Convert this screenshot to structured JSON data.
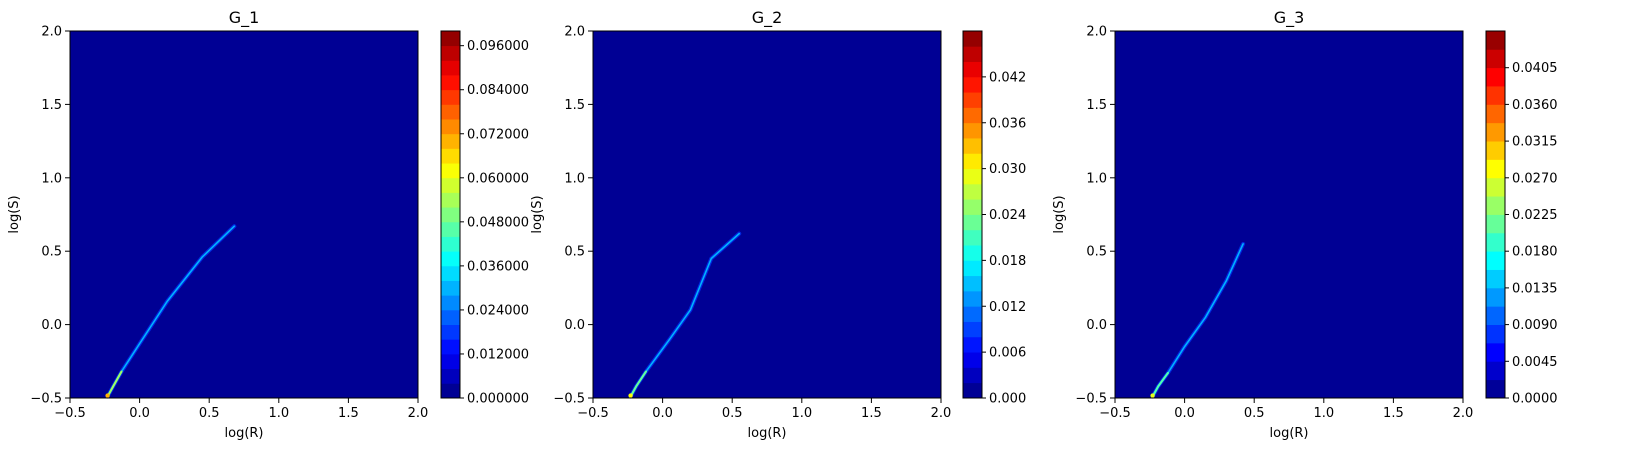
{
  "colors": {
    "background": "#000080",
    "colormap": "jet"
  },
  "chart_data": [
    {
      "type": "heatmap",
      "title": "G_1",
      "xlabel": "log(R)",
      "ylabel": "log(S)",
      "xlim": [
        -0.5,
        2.0
      ],
      "ylim": [
        -0.5,
        2.0
      ],
      "xticks": [
        "−0.5",
        "0.0",
        "0.5",
        "1.0",
        "1.5",
        "2.0"
      ],
      "yticks": [
        "−0.5",
        "0.0",
        "0.5",
        "1.0",
        "1.5",
        "2.0"
      ],
      "colorbar": {
        "min": 0.0,
        "max": 0.1,
        "levels": 25,
        "ticks": [
          "0.000000",
          "0.012000",
          "0.024000",
          "0.036000",
          "0.048000",
          "0.060000",
          "0.072000",
          "0.084000",
          "0.096000"
        ],
        "tick_values": [
          0,
          0.012,
          0.024,
          0.036,
          0.048,
          0.06,
          0.072,
          0.084,
          0.096
        ]
      },
      "ridge": {
        "points": [
          [
            -0.23,
            -0.49
          ],
          [
            -0.19,
            -0.42
          ],
          [
            -0.13,
            -0.32
          ],
          [
            0.0,
            -0.13
          ],
          [
            0.2,
            0.16
          ],
          [
            0.45,
            0.46
          ],
          [
            0.68,
            0.67
          ]
        ],
        "peak_value": 0.07
      },
      "grid": false
    },
    {
      "type": "heatmap",
      "title": "G_2",
      "xlabel": "log(R)",
      "ylabel": "log(S)",
      "xlim": [
        -0.5,
        2.0
      ],
      "ylim": [
        -0.5,
        2.0
      ],
      "xticks": [
        "−0.5",
        "0.0",
        "0.5",
        "1.0",
        "1.5",
        "2.0"
      ],
      "yticks": [
        "−0.5",
        "0.0",
        "0.5",
        "1.0",
        "1.5",
        "2.0"
      ],
      "colorbar": {
        "min": 0.0,
        "max": 0.048,
        "levels": 24,
        "ticks": [
          "0.000",
          "0.006",
          "0.012",
          "0.018",
          "0.024",
          "0.030",
          "0.036",
          "0.042"
        ],
        "tick_values": [
          0,
          0.006,
          0.012,
          0.018,
          0.024,
          0.03,
          0.036,
          0.042
        ]
      },
      "ridge": {
        "points": [
          [
            -0.23,
            -0.49
          ],
          [
            -0.19,
            -0.42
          ],
          [
            -0.12,
            -0.32
          ],
          [
            0.05,
            -0.1
          ],
          [
            0.2,
            0.1
          ],
          [
            0.35,
            0.45
          ],
          [
            0.55,
            0.62
          ]
        ],
        "peak_value": 0.03
      },
      "grid": false
    },
    {
      "type": "heatmap",
      "title": "G_3",
      "xlabel": "log(R)",
      "ylabel": "log(S)",
      "xlim": [
        -0.5,
        2.0
      ],
      "ylim": [
        -0.5,
        2.0
      ],
      "xticks": [
        "−0.5",
        "0.0",
        "0.5",
        "1.0",
        "1.5",
        "2.0"
      ],
      "yticks": [
        "−0.5",
        "0.0",
        "0.5",
        "1.0",
        "1.5",
        "2.0"
      ],
      "colorbar": {
        "min": 0.0,
        "max": 0.045,
        "levels": 20,
        "ticks": [
          "0.0000",
          "0.0045",
          "0.0090",
          "0.0135",
          "0.0180",
          "0.0225",
          "0.0270",
          "0.0315",
          "0.0360",
          "0.0405"
        ],
        "tick_values": [
          0,
          0.0045,
          0.009,
          0.0135,
          0.018,
          0.0225,
          0.027,
          0.0315,
          0.036,
          0.0405
        ]
      },
      "ridge": {
        "points": [
          [
            -0.23,
            -0.49
          ],
          [
            -0.19,
            -0.42
          ],
          [
            -0.12,
            -0.33
          ],
          [
            0.0,
            -0.15
          ],
          [
            0.15,
            0.05
          ],
          [
            0.3,
            0.3
          ],
          [
            0.42,
            0.55
          ]
        ],
        "peak_value": 0.027
      },
      "grid": false
    }
  ]
}
